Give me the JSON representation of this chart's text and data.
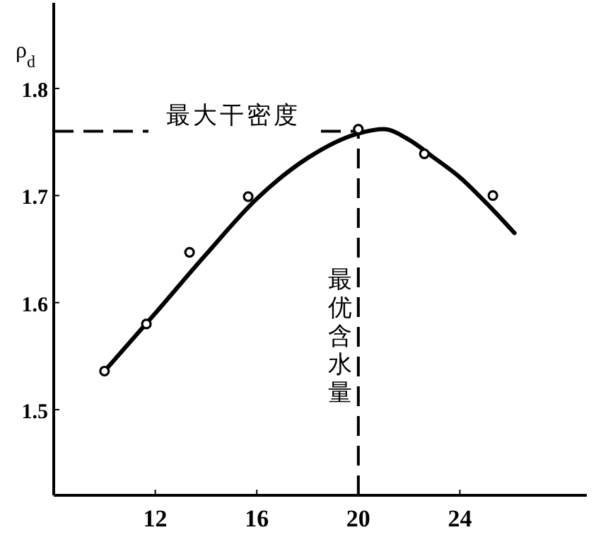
{
  "chart_data": {
    "type": "scatter",
    "ylabel": "ρ$_{d}$",
    "xlim": [
      8,
      29
    ],
    "xticks": [
      12,
      16,
      20,
      24
    ],
    "ylim": [
      1.42,
      1.88
    ],
    "yticks": [
      1.5,
      1.6,
      1.7,
      1.8
    ],
    "series": [
      {
        "color": "#000000",
        "marker": "circle",
        "x": [
          10,
          11.65,
          13.35,
          15.66,
          20,
          22.6,
          25.3
        ],
        "values": [
          1.536,
          1.58,
          1.647,
          1.699,
          1.762,
          1.739,
          1.7
        ]
      },
      {
        "type": "line",
        "color": "#000000",
        "line_style": "solid",
        "x": [
          10,
          12,
          14,
          16,
          18,
          20,
          21,
          22,
          23,
          24,
          25,
          26.15
        ],
        "values": [
          1.536,
          1.59,
          1.645,
          1.697,
          1.735,
          1.758,
          1.762,
          1.752,
          1.735,
          1.717,
          1.694,
          1.665
        ]
      }
    ],
    "ref_lines": [
      {
        "axis": "y",
        "value": 1.76,
        "label": "最大干密度",
        "line_style": "dashed"
      },
      {
        "axis": "x",
        "value": 20,
        "label": "最优含水量",
        "line_style": "dashed"
      }
    ],
    "grid": false
  }
}
